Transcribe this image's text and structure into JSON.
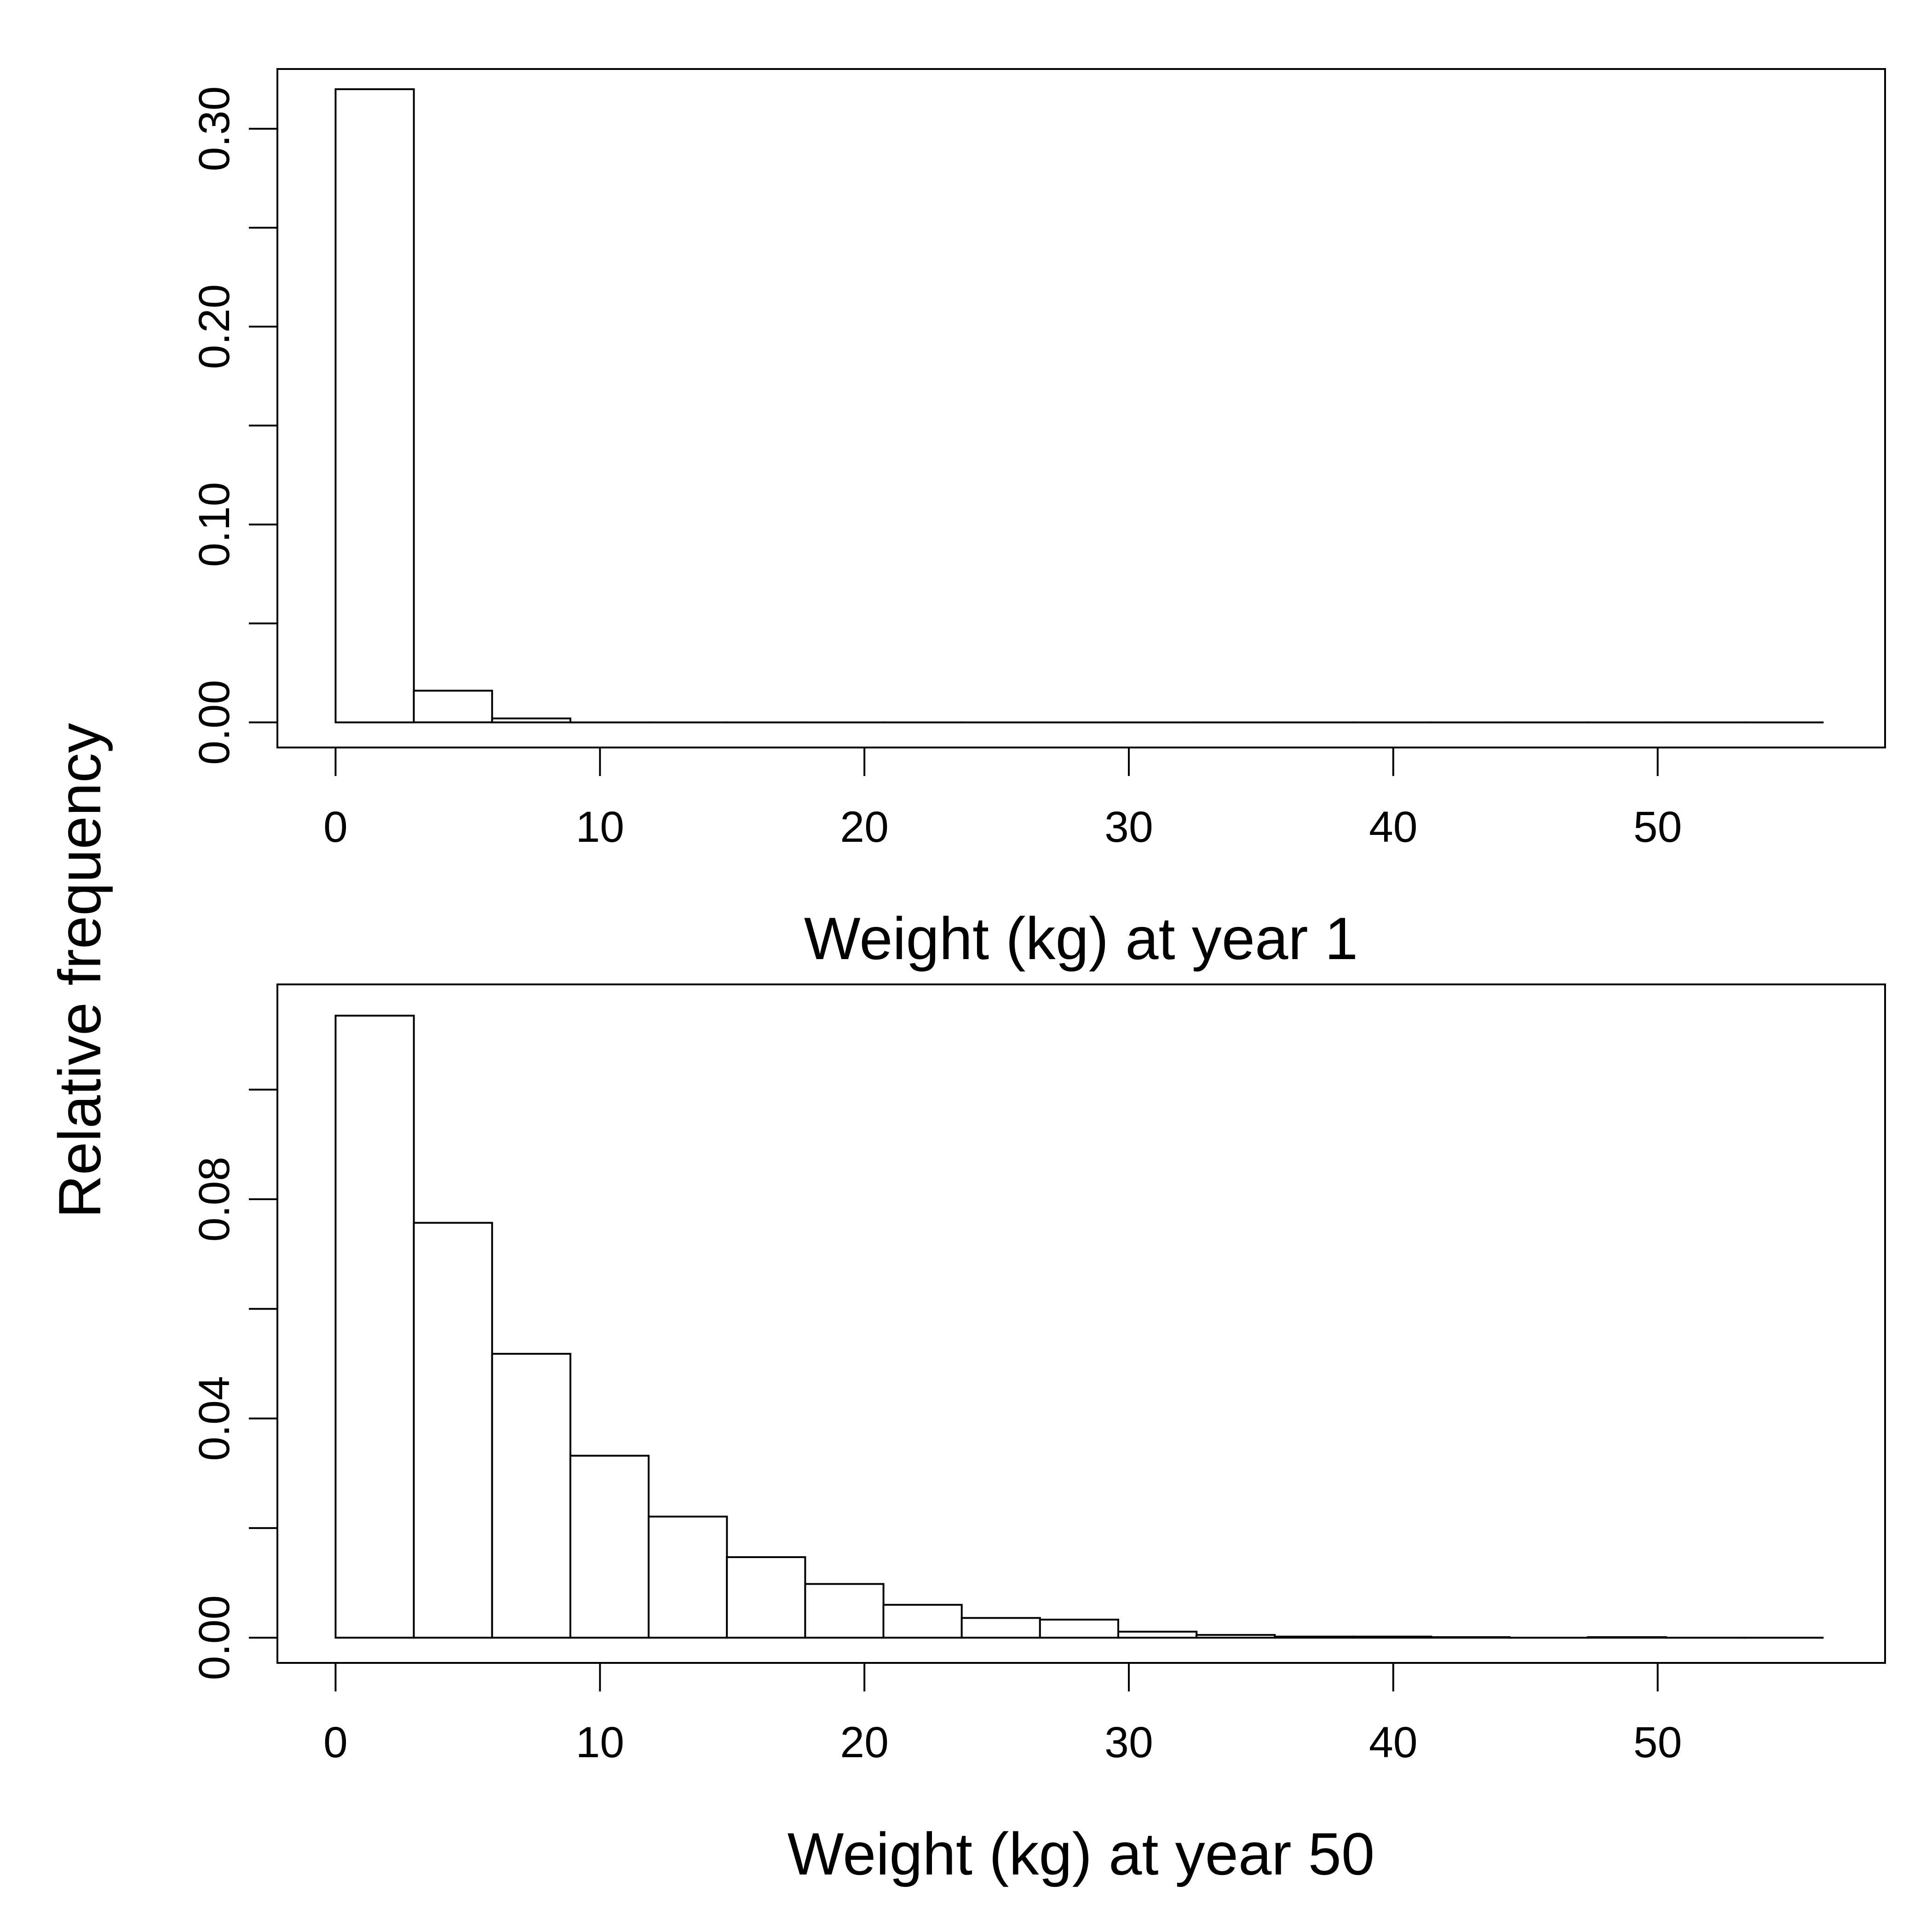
{
  "shared": {
    "ylabel": "Relative frequency"
  },
  "chart_data": [
    {
      "type": "bar",
      "subtype": "histogram",
      "xlabel": "Weight (kg) at year 1",
      "ylabel": "Relative frequency",
      "bin_edges": [
        0,
        2.96,
        5.92,
        8.88,
        11.84,
        14.8,
        17.76,
        20.72,
        23.68,
        26.64,
        29.6,
        32.56,
        35.52,
        38.48,
        41.44,
        44.4,
        47.36,
        50.32,
        53.28,
        56.24
      ],
      "values": [
        0.32,
        0.016,
        0.002,
        0,
        0,
        0,
        0,
        0,
        0,
        0,
        0,
        0,
        0,
        0,
        0,
        0,
        0,
        0,
        0
      ],
      "xlim": [
        -2.2,
        58.6
      ],
      "ylim": [
        -0.0127,
        0.3302
      ],
      "x_ticks": [
        "0",
        "10",
        "20",
        "30",
        "40",
        "50"
      ],
      "x_tick_values": [
        0,
        10,
        20,
        30,
        40,
        50
      ],
      "y_ticks": [
        0,
        0.05,
        0.1,
        0.15,
        0.2,
        0.25,
        0.3
      ],
      "y_tick_labels": [
        "0.00",
        "",
        "0.10",
        "",
        "0.20",
        "",
        "0.30"
      ],
      "grid": false,
      "fill": "#ffffff",
      "stroke": "#000000"
    },
    {
      "type": "bar",
      "subtype": "histogram",
      "xlabel": "Weight (kg) at year 50",
      "ylabel": "Relative frequency",
      "bin_edges": [
        0,
        2.96,
        5.92,
        8.88,
        11.84,
        14.8,
        17.76,
        20.72,
        23.68,
        26.64,
        29.6,
        32.56,
        35.52,
        38.48,
        41.44,
        44.4,
        47.36,
        50.32,
        53.28,
        56.24
      ],
      "values": [
        0.1135,
        0.0757,
        0.0518,
        0.0332,
        0.0221,
        0.0147,
        0.0098,
        0.006,
        0.0036,
        0.0033,
        0.0011,
        0.0005,
        0.0002,
        0.0002,
        0.0001,
        0.0,
        0.0001,
        0.0,
        0.0
      ],
      "xlim": [
        -2.2,
        58.6
      ],
      "ylim": [
        -0.0046,
        0.1192
      ],
      "x_ticks": [
        "0",
        "10",
        "20",
        "30",
        "40",
        "50"
      ],
      "x_tick_values": [
        0,
        10,
        20,
        30,
        40,
        50
      ],
      "y_ticks": [
        0,
        0.02,
        0.04,
        0.06,
        0.08,
        0.1
      ],
      "y_tick_labels": [
        "0.00",
        "",
        "0.04",
        "",
        "0.08",
        ""
      ],
      "grid": false,
      "fill": "#ffffff",
      "stroke": "#000000"
    }
  ]
}
